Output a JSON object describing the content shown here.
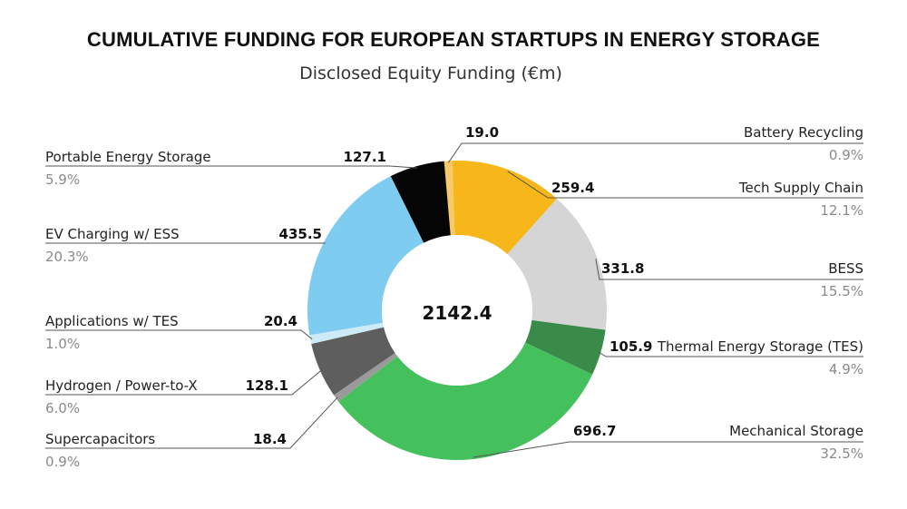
{
  "chart_data": {
    "type": "pie",
    "title": "CUMULATIVE FUNDING FOR EUROPEAN STARTUPS IN ENERGY STORAGE",
    "subtitle": "Disclosed Equity Funding (€m)",
    "total_label": "2142.4",
    "slices": [
      {
        "name": "Battery Recycling",
        "value": 19.0,
        "value_label": "19.0",
        "percent_label": "0.9%",
        "color": "#F7C968"
      },
      {
        "name": "Tech Supply Chain",
        "value": 259.4,
        "value_label": "259.4",
        "percent_label": "12.1%",
        "color": "#F7B619"
      },
      {
        "name": "BESS",
        "value": 331.8,
        "value_label": "331.8",
        "percent_label": "15.5%",
        "color": "#D5D5D5"
      },
      {
        "name": "Thermal Energy Storage (TES)",
        "value": 105.9,
        "value_label": "105.9",
        "percent_label": "4.9%",
        "color": "#3A8A4A"
      },
      {
        "name": "Mechanical Storage",
        "value": 696.7,
        "value_label": "696.7",
        "percent_label": "32.5%",
        "color": "#44C05C"
      },
      {
        "name": "Supercapacitors",
        "value": 18.4,
        "value_label": "18.4",
        "percent_label": "0.9%",
        "color": "#9A9A9A"
      },
      {
        "name": "Hydrogen / Power-to-X",
        "value": 128.1,
        "value_label": "128.1",
        "percent_label": "6.0%",
        "color": "#5E5E5E"
      },
      {
        "name": "Applications w/ TES",
        "value": 20.4,
        "value_label": "20.4",
        "percent_label": "1.0%",
        "color": "#CDEAF7"
      },
      {
        "name": "EV Charging w/ ESS",
        "value": 435.5,
        "value_label": "435.5",
        "percent_label": "20.3%",
        "color": "#7ECDF0"
      },
      {
        "name": "Portable Energy Storage",
        "value": 127.1,
        "value_label": "127.1",
        "percent_label": "5.9%",
        "color": "#050505"
      }
    ]
  }
}
